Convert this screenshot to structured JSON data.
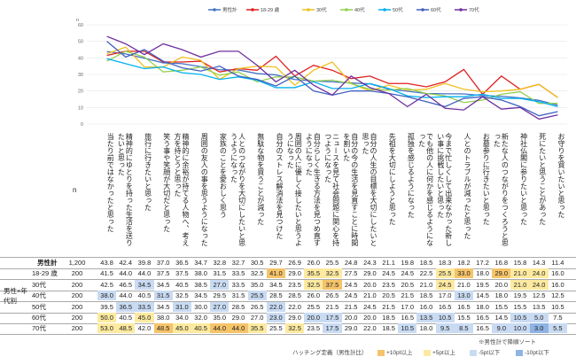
{
  "chart_data": {
    "type": "line",
    "yaxis": {
      "label": "n",
      "ticks": [
        0,
        10,
        20,
        30,
        40,
        50,
        60
      ],
      "ylim": [
        0,
        60
      ]
    },
    "legend_position": "top",
    "categories": [
      "当たり前ではなかったと思った",
      "精神的にゆとりを持った生活を送りたいと思った",
      "旅行に行きたいと思った",
      "笑う事や笑顔が大切だと思った",
      "精神的に余裕が持てる人物へ、考え方を持とうと思った",
      "周囲の友人の事を思うようになった",
      "家族のことを愛おしく思う",
      "人とのつながりを大切にしたいと思うようになった",
      "無駄な物を買うことが減った",
      "自分のストレス解消法を見つけた",
      "周囲の人に優しく接したいと思うようになった",
      "自分らしく生きる方法を見つめ直すようになった",
      "ニュースを見て社会問題に関心を持つようになった",
      "自分の今の生活を見直すことに時間を割いた",
      "自分の人生の目標を大切にしたいと思った",
      "先祖を大切にしようと思った",
      "孤独を感じるようになった",
      "でも他の人に何かを感じるようになった",
      "今まで忙しくして出来なかった新しい事に挑戦したいと思った",
      "人とのトラブルが減ったと思った",
      "お墓参りに行きたいと思った",
      "新たな人のつながりをつくろうと思った",
      "神社仏閣に参りたいと思った",
      "死にたいと思うことがあった",
      "お守りを買いたいと思った"
    ],
    "series": [
      {
        "name": "男性計",
        "color": "#4472c4",
        "values": [
          43.8,
          42.4,
          39.8,
          37.0,
          36.5,
          34.7,
          32.8,
          32.7,
          30.5,
          29.7,
          26.9,
          26.0,
          25.5,
          24.8,
          24.3,
          21.1,
          19.8,
          18.5,
          18.3,
          18.2,
          17.2,
          16.8,
          15.8,
          14.3,
          11.4
        ]
      },
      {
        "name": "18-29 歳",
        "color": "#e02020",
        "values": [
          41.5,
          44.0,
          44.0,
          37.5,
          37.5,
          38.0,
          31.5,
          33.5,
          32.5,
          41.0,
          29.0,
          35.5,
          32.5,
          27.5,
          29.0,
          24.5,
          24.5,
          22.5,
          25.5,
          33.0,
          18.0,
          29.0,
          21.0,
          24.0,
          16.0
        ]
      },
      {
        "name": "30代",
        "color": "#f0c020",
        "values": [
          42.5,
          46.5,
          34.5,
          34.5,
          40.5,
          38.5,
          27.0,
          33.5,
          35.0,
          34.5,
          23.5,
          32.5,
          37.5,
          24.5,
          20.0,
          23.5,
          20.5,
          21.0,
          24.5,
          21.0,
          19.5,
          20.0,
          21.0,
          24.0,
          16.0
        ]
      },
      {
        "name": "40代",
        "color": "#92d050",
        "values": [
          38.0,
          44.0,
          40.5,
          31.5,
          32.5,
          34.5,
          29.5,
          31.5,
          25.5,
          28.5,
          28.5,
          26.0,
          26.5,
          24.5,
          21.0,
          20.5,
          21.5,
          18.5,
          17.0,
          13.0,
          14.5,
          18.0,
          19.5,
          12.5,
          12.5
        ]
      },
      {
        "name": "50代",
        "color": "#00b0f0",
        "values": [
          39.5,
          36.5,
          33.5,
          34.5,
          31.0,
          30.0,
          27.0,
          28.5,
          26.5,
          22.0,
          22.0,
          25.5,
          21.5,
          21.5,
          24.5,
          21.5,
          17.0,
          16.0,
          16.5,
          16.5,
          18.0,
          15.5,
          15.5,
          13.5,
          10.5
        ]
      },
      {
        "name": "60代",
        "color": "#4060c0",
        "values": [
          50.0,
          40.5,
          45.0,
          38.0,
          34.0,
          32.0,
          35.0,
          29.0,
          27.0,
          23.0,
          29.0,
          20.0,
          17.5,
          20.0,
          20.0,
          18.5,
          16.5,
          13.5,
          10.5,
          15.5,
          16.5,
          14.5,
          10.5,
          5.0,
          7.5
        ]
      },
      {
        "name": "70代",
        "color": "#7030a0",
        "values": [
          53.0,
          48.5,
          42.0,
          48.5,
          45.0,
          40.5,
          44.0,
          44.0,
          35.5,
          25.5,
          32.5,
          23.5,
          17.5,
          29.0,
          22.0,
          18.5,
          10.5,
          18.0,
          9.5,
          8.5,
          16.5,
          9.0,
          10.0,
          3.0,
          5.5
        ]
      }
    ]
  },
  "table": {
    "n_header": "n",
    "group_label": "男性×年代別",
    "rows": [
      {
        "label": "男性計",
        "n": "1,200",
        "values": [
          "43.8",
          "42.4",
          "39.8",
          "37.0",
          "36.5",
          "34.7",
          "32.8",
          "32.7",
          "30.5",
          "29.7",
          "26.9",
          "26.0",
          "25.5",
          "24.8",
          "24.3",
          "21.1",
          "19.8",
          "18.5",
          "18.3",
          "18.2",
          "17.2",
          "16.8",
          "15.8",
          "14.3",
          "11.4"
        ]
      },
      {
        "label": "18-29 歳",
        "n": "200",
        "values": [
          "41.5",
          "44.0",
          "44.0",
          "37.5",
          "37.5",
          "38.0",
          "31.5",
          "33.5",
          "32.5",
          "41.0",
          "29.0",
          "35.5",
          "32.5",
          "27.5",
          "29.0",
          "24.5",
          "24.5",
          "22.5",
          "25.5",
          "33.0",
          "18.0",
          "29.0",
          "21.0",
          "24.0",
          "16.0"
        ]
      },
      {
        "label": "30代",
        "n": "200",
        "values": [
          "42.5",
          "46.5",
          "34.5",
          "34.5",
          "40.5",
          "38.5",
          "27.0",
          "33.5",
          "35.0",
          "34.5",
          "23.5",
          "32.5",
          "37.5",
          "24.5",
          "20.0",
          "23.5",
          "20.5",
          "21.0",
          "24.5",
          "21.0",
          "19.5",
          "20.0",
          "21.0",
          "24.0",
          "16.0"
        ]
      },
      {
        "label": "40代",
        "n": "200",
        "values": [
          "38.0",
          "44.0",
          "40.5",
          "31.5",
          "32.5",
          "34.5",
          "29.5",
          "31.5",
          "25.5",
          "28.5",
          "28.5",
          "26.0",
          "26.5",
          "24.5",
          "21.0",
          "20.5",
          "21.5",
          "18.5",
          "17.0",
          "13.0",
          "14.5",
          "18.0",
          "19.5",
          "12.5",
          "12.5"
        ]
      },
      {
        "label": "50代",
        "n": "200",
        "values": [
          "39.5",
          "36.5",
          "33.5",
          "34.5",
          "31.0",
          "30.0",
          "27.0",
          "28.5",
          "26.5",
          "22.0",
          "22.0",
          "25.5",
          "21.5",
          "21.5",
          "24.5",
          "21.5",
          "17.0",
          "16.0",
          "16.5",
          "16.5",
          "18.0",
          "15.5",
          "15.5",
          "13.5",
          "10.5"
        ]
      },
      {
        "label": "60代",
        "n": "200",
        "values": [
          "50.0",
          "40.5",
          "45.0",
          "38.0",
          "34.0",
          "32.0",
          "35.0",
          "29.0",
          "27.0",
          "23.0",
          "29.0",
          "20.0",
          "17.5",
          "20.0",
          "20.0",
          "18.5",
          "16.5",
          "13.5",
          "10.5",
          "15.5",
          "16.5",
          "14.5",
          "10.5",
          "5.0",
          "7.5"
        ]
      },
      {
        "label": "70代",
        "n": "200",
        "values": [
          "53.0",
          "48.5",
          "42.0",
          "48.5",
          "45.0",
          "40.5",
          "44.0",
          "44.0",
          "35.5",
          "25.5",
          "32.5",
          "23.5",
          "17.5",
          "29.0",
          "22.0",
          "18.5",
          "10.5",
          "18.0",
          "9.5",
          "8.5",
          "16.5",
          "9.0",
          "10.0",
          "3.0",
          "5.5"
        ]
      }
    ],
    "highlight_colors": {
      "p10": "#f5c46a",
      "p5": "#fdeaa0",
      "m5": "#c9dbf2",
      "m10": "#8fb4e3"
    }
  },
  "footer": {
    "sort_note": "※男性計で降順ソート",
    "legend_title": "ハッチング定義（男性計比）",
    "legend_items": [
      "+10pt以上",
      "+5pt以上",
      "-5pt以下",
      "-10pt以下"
    ]
  }
}
